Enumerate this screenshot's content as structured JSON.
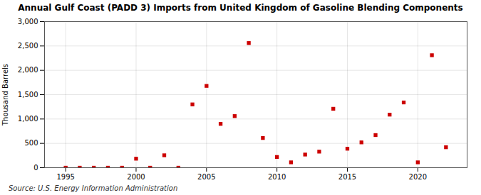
{
  "chart_data": {
    "type": "scatter",
    "title": "Annual Gulf Coast (PADD 3) Imports from United Kingdom of Gasoline Blending Components",
    "ylabel": "Thousand Barrels",
    "source": "Source: U.S. Energy Information Administration",
    "x": [
      1995,
      1996,
      1997,
      1998,
      1999,
      2000,
      2001,
      2002,
      2003,
      2004,
      2005,
      2006,
      2007,
      2008,
      2009,
      2010,
      2011,
      2012,
      2013,
      2014,
      2015,
      2016,
      2017,
      2018,
      2019,
      2020,
      2021,
      2022
    ],
    "values": [
      0,
      0,
      0,
      0,
      0,
      185,
      0,
      255,
      0,
      1300,
      1680,
      900,
      1060,
      2560,
      610,
      220,
      110,
      270,
      330,
      1210,
      390,
      520,
      670,
      1090,
      1340,
      110,
      2310,
      420
    ],
    "color": "#cc0000",
    "marker": "square",
    "xlim": [
      1993.5,
      2023.5
    ],
    "xticks": [
      1995,
      2000,
      2005,
      2010,
      2015,
      2020
    ],
    "ylim": [
      0,
      3000
    ],
    "yticks": [
      0,
      500,
      {
        "value": 1000,
        "label": "1,000"
      },
      {
        "value": 1500,
        "label": "1,500"
      },
      {
        "value": 2000,
        "label": "2,000"
      },
      {
        "value": 2500,
        "label": "2,500"
      },
      {
        "value": 3000,
        "label": "3,000"
      }
    ],
    "grid": true
  }
}
